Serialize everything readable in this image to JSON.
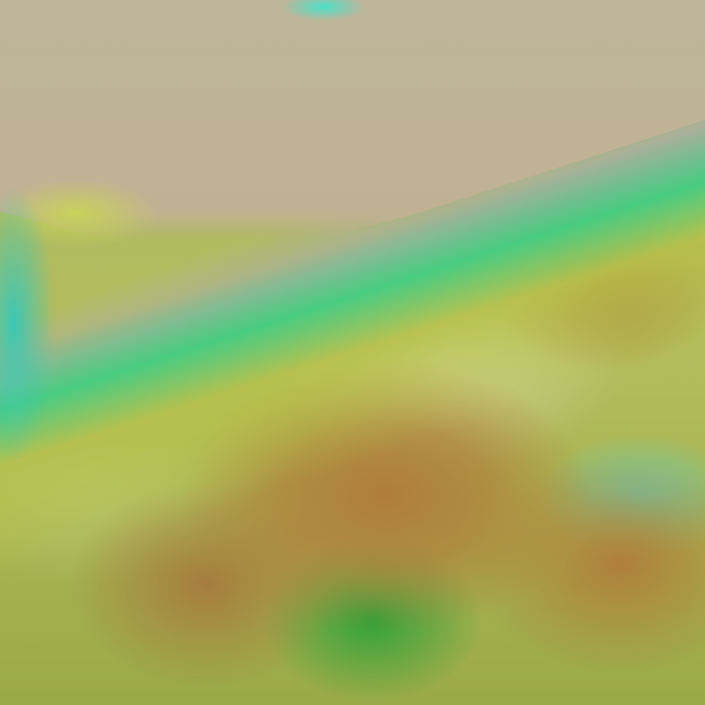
{
  "image": {
    "kind": "false-color satellite imagery",
    "colors": {
      "land": "#c1b193",
      "cloud_yellow": "#b8c24a",
      "cloud_orange": "#b07d3a",
      "cloud_edge_green": "#3fd07e",
      "water_cyan": "#4ee0c8"
    }
  }
}
